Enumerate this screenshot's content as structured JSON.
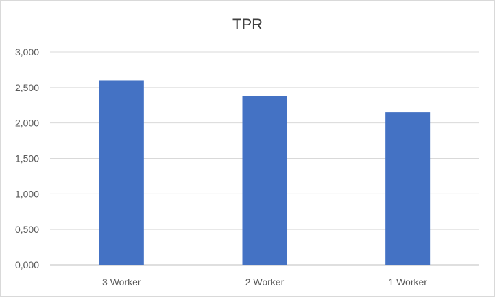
{
  "chart_data": {
    "type": "bar",
    "title": "TPR",
    "xlabel": "",
    "ylabel": "",
    "categories": [
      "3 Worker",
      "2 Worker",
      "1 Worker"
    ],
    "values": [
      2.6,
      2.38,
      2.15
    ],
    "ylim": [
      0,
      3
    ],
    "yticks": [
      0,
      0.5,
      1,
      1.5,
      2,
      2.5,
      3
    ],
    "ytick_labels": [
      "0,000",
      "0,500",
      "1,000",
      "1,500",
      "2,000",
      "2,500",
      "3,000"
    ],
    "grid": true,
    "legend": "none",
    "bar_color": "#4472C4"
  }
}
